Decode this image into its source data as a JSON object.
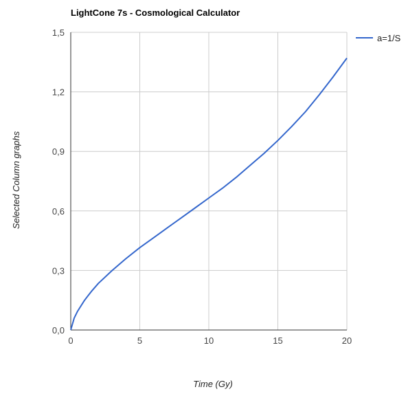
{
  "chart_data": {
    "type": "line",
    "title": "LightCone 7s - Cosmological Calculator",
    "xlabel": "Time (Gy)",
    "ylabel": "Selected Column graphs",
    "xlim": [
      0,
      20
    ],
    "ylim": [
      0,
      1.5
    ],
    "x_ticks": [
      "0",
      "5",
      "10",
      "15",
      "20"
    ],
    "y_ticks": [
      "0,0",
      "0,3",
      "0,6",
      "0,9",
      "1,2",
      "1,5"
    ],
    "grid": true,
    "legend_position": "right",
    "series": [
      {
        "name": "a=1/S",
        "color": "#3366cc",
        "x": [
          0,
          0.25,
          0.5,
          1,
          1.5,
          2,
          3,
          4,
          5,
          6,
          7,
          8,
          9,
          10,
          11,
          12,
          13,
          14,
          15,
          16,
          17,
          18,
          19,
          20
        ],
        "y": [
          0,
          0.06,
          0.095,
          0.15,
          0.195,
          0.235,
          0.3,
          0.36,
          0.415,
          0.465,
          0.515,
          0.565,
          0.615,
          0.665,
          0.715,
          0.77,
          0.83,
          0.89,
          0.955,
          1.025,
          1.1,
          1.185,
          1.275,
          1.37
        ]
      }
    ]
  }
}
